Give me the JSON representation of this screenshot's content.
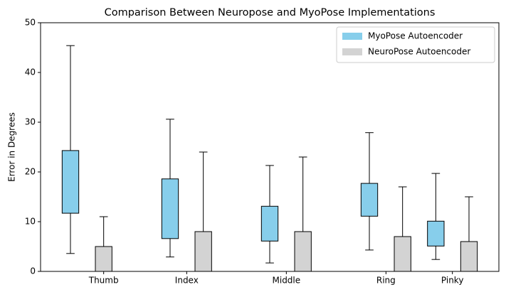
{
  "chart_data": {
    "type": "box",
    "title": "Comparison Between Neuropose and MyoPose Implementations",
    "ylabel": "Error in Degrees",
    "xlim": [
      0.1,
      13.9
    ],
    "xticks": [
      {
        "value": 2,
        "label": "Thumb"
      },
      {
        "value": 4.5,
        "label": "Index"
      },
      {
        "value": 7.5,
        "label": "Middle"
      },
      {
        "value": 10.5,
        "label": "Ring"
      },
      {
        "value": 12.5,
        "label": "Pinky"
      }
    ],
    "ylim": [
      0,
      50
    ],
    "yticks": [
      0,
      10,
      20,
      30,
      40,
      50
    ],
    "legend": "upper right",
    "series": [
      {
        "name": "MyoPose Autoencoder",
        "color": "#87ceeb",
        "x": [
          1,
          4,
          7,
          10,
          12
        ],
        "whishi": [
          45.4,
          30.6,
          21.3,
          27.9,
          19.7
        ],
        "q3": [
          24.3,
          18.6,
          13.1,
          17.7,
          10.1
        ],
        "q1": [
          11.7,
          6.6,
          6.1,
          11.1,
          5.1
        ],
        "whislo": [
          3.6,
          2.9,
          1.7,
          4.3,
          2.4
        ]
      },
      {
        "name": "NeuroPose Autoencoder",
        "color": "#d3d3d3",
        "x": [
          2,
          5,
          8,
          11,
          13
        ],
        "whishi": [
          11,
          24,
          23,
          17,
          15
        ],
        "q3": [
          5,
          8,
          8,
          7,
          6
        ],
        "q1": [
          0,
          0,
          0,
          0,
          0
        ],
        "whislo": [
          1,
          2,
          2,
          2,
          1
        ]
      }
    ]
  }
}
